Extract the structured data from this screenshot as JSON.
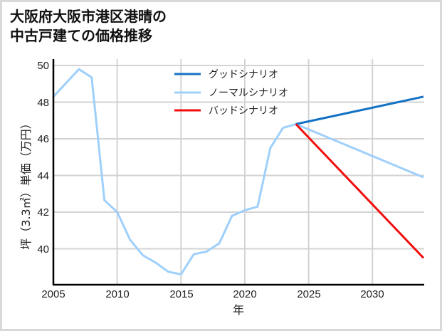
{
  "title": {
    "line1": "大阪府大阪市港区港晴の",
    "line2": "中古戸建ての価格推移"
  },
  "colors": {
    "good": "#1472c4",
    "normal": "#9fd0fb",
    "bad": "#f20d0d",
    "grid": "#d3d3d3",
    "axis": "#000000",
    "border": "#d9d9d9"
  },
  "chart_data": {
    "type": "line",
    "title": "大阪府大阪市港区港晴の中古戸建ての価格推移",
    "xlabel": "年",
    "ylabel": "坪（3.3㎡）単価（万円）",
    "xlim": [
      2005,
      2034
    ],
    "ylim": [
      38.0,
      50.3
    ],
    "xticks": [
      2005,
      2010,
      2015,
      2020,
      2025,
      2030
    ],
    "yticks": [
      40,
      42,
      44,
      46,
      48,
      50
    ],
    "grid": true,
    "legend_position": "upper center",
    "series": [
      {
        "name": "ノーマルシナリオ",
        "role": "history",
        "color": "#9fd0fb",
        "x": [
          2005,
          2007,
          2008,
          2009,
          2010,
          2011,
          2012,
          2013,
          2014,
          2015,
          2016,
          2017,
          2018,
          2019,
          2020,
          2021,
          2022,
          2023,
          2024
        ],
        "values": [
          48.3,
          49.8,
          49.35,
          42.65,
          42.0,
          40.5,
          39.65,
          39.25,
          38.75,
          38.6,
          39.7,
          39.85,
          40.3,
          41.8,
          42.1,
          42.3,
          45.5,
          46.6,
          46.8
        ]
      },
      {
        "name": "グッドシナリオ",
        "color": "#1472c4",
        "x": [
          2024,
          2034
        ],
        "values": [
          46.8,
          48.3
        ]
      },
      {
        "name": "ノーマルシナリオ",
        "color": "#9fd0fb",
        "x": [
          2024,
          2034
        ],
        "values": [
          46.8,
          43.9
        ]
      },
      {
        "name": "バッドシナリオ",
        "color": "#f20d0d",
        "x": [
          2024,
          2034
        ],
        "values": [
          46.8,
          39.5
        ]
      }
    ],
    "legend": [
      "グッドシナリオ",
      "ノーマルシナリオ",
      "バッドシナリオ"
    ]
  },
  "axis": {
    "xlabel": "年",
    "ylabel": "坪（3.3㎡）単価（万円）",
    "xticks": [
      "2005",
      "2010",
      "2015",
      "2020",
      "2025",
      "2030"
    ],
    "yticks": [
      "50",
      "48",
      "46",
      "44",
      "42",
      "40"
    ]
  },
  "legend": [
    {
      "label": "グッドシナリオ"
    },
    {
      "label": "ノーマルシナリオ"
    },
    {
      "label": "バッドシナリオ"
    }
  ]
}
